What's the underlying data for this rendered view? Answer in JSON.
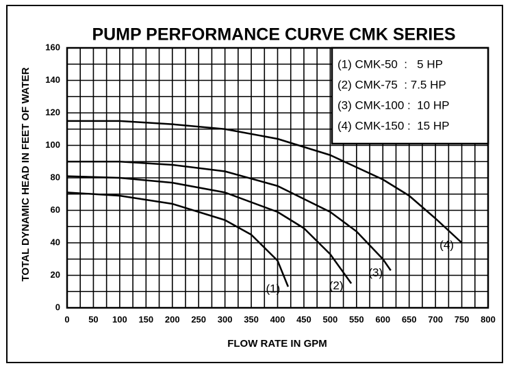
{
  "chart_data": {
    "type": "line",
    "title": "PUMP PERFORMANCE CURVE CMK SERIES",
    "x_label": "FLOW RATE IN GPM",
    "y_label": "TOTAL DYNAMIC HEAD IN FEET OF WATER",
    "xlim": [
      0,
      800
    ],
    "xticks": [
      0,
      50,
      100,
      150,
      200,
      250,
      300,
      350,
      400,
      450,
      500,
      550,
      600,
      650,
      700,
      750,
      800
    ],
    "ylim": [
      0,
      160
    ],
    "yticks": [
      0,
      20,
      40,
      60,
      80,
      100,
      120,
      140,
      160
    ],
    "grid": true,
    "legend": [
      "(1) CMK-50  :   5 HP",
      "(2) CMK-75  : 7.5 HP",
      "(3) CMK-100 :  10 HP",
      "(4) CMK-150 :  15 HP"
    ],
    "legend_position": "upper right",
    "series": [
      {
        "name": "(1)",
        "color": "#000000",
        "x": [
          0,
          100,
          200,
          300,
          350,
          400,
          420
        ],
        "values": [
          71,
          69,
          64,
          54,
          45,
          29,
          13
        ]
      },
      {
        "name": "(2)",
        "color": "#000000",
        "x": [
          0,
          100,
          200,
          300,
          400,
          450,
          500,
          540
        ],
        "values": [
          81,
          80,
          77,
          71,
          59,
          49,
          33,
          15
        ]
      },
      {
        "name": "(3)",
        "color": "#000000",
        "x": [
          0,
          100,
          200,
          300,
          400,
          500,
          550,
          600,
          615
        ],
        "values": [
          90,
          90,
          88,
          84,
          75,
          59,
          47,
          30,
          23
        ]
      },
      {
        "name": "(4)",
        "color": "#000000",
        "x": [
          0,
          100,
          200,
          300,
          400,
          500,
          600,
          650,
          700,
          750
        ],
        "values": [
          115,
          115,
          113,
          110,
          104,
          94,
          79,
          69,
          55,
          40
        ]
      }
    ]
  }
}
